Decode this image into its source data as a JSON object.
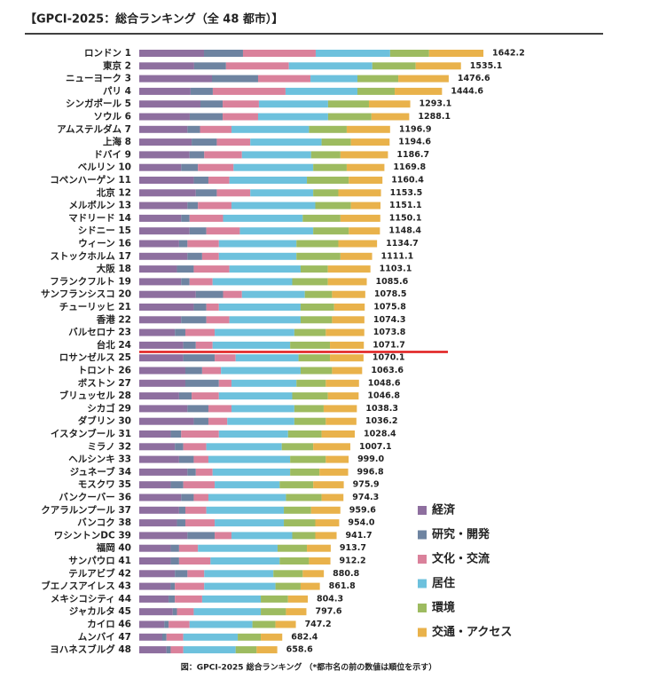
{
  "chart_data": {
    "type": "stacked-bar-horizontal",
    "title": "【GPCI-2025：総合ランキング（全 48 都市）】",
    "caption": "図：GPCI-2025 総合ランキング （*都市名の前の数値は順位を示す）",
    "categories": [
      "ロンドン 1",
      "東京 2",
      "ニューヨーク 3",
      "パリ 4",
      "シンガポール 5",
      "ソウル 6",
      "アムステルダム 7",
      "上海 8",
      "ドバイ 9",
      "ベルリン 10",
      "コペンハーゲン 11",
      "北京 12",
      "メルボルン 13",
      "マドリード 14",
      "シドニー 15",
      "ウィーン 16",
      "ストックホルム 17",
      "大阪 18",
      "フランクフルト 19",
      "サンフランシスコ 20",
      "チューリッヒ 21",
      "香港 22",
      "バルセロナ 23",
      "台北 24",
      "ロサンゼルス 25",
      "トロント 26",
      "ボストン 27",
      "ブリュッセル 28",
      "シカゴ 29",
      "ダブリン 30",
      "イスタンブール 31",
      "ミラノ 32",
      "ヘルシンキ 33",
      "ジュネーブ 34",
      "モスクワ 35",
      "バンクーバー 36",
      "クアラルンプール 37",
      "バンコク 38",
      "ワシントンDC 39",
      "福岡 40",
      "サンパウロ 41",
      "テルアビブ 42",
      "ブエノスアイレス 43",
      "メキシコシティ 44",
      "ジャカルタ 45",
      "カイロ 46",
      "ムンバイ 47",
      "ヨハネスブルグ 48"
    ],
    "series": [
      {
        "name": "経済",
        "color": "#8e6f9f",
        "values": [
          309,
          262,
          347,
          245,
          292,
          241,
          230,
          250,
          240,
          200,
          260,
          270,
          230,
          200,
          240,
          190,
          230,
          180,
          200,
          270,
          260,
          200,
          170,
          210,
          210,
          220,
          220,
          190,
          230,
          260,
          150,
          170,
          190,
          230,
          150,
          200,
          190,
          180,
          230,
          150,
          150,
          170,
          150,
          140,
          160,
          120,
          110,
          130
        ]
      },
      {
        "name": "研究・開発",
        "color": "#6e84a1",
        "values": [
          186,
          152,
          220,
          106,
          106,
          157,
          60,
          120,
          70,
          80,
          70,
          100,
          50,
          40,
          80,
          40,
          70,
          80,
          40,
          130,
          60,
          120,
          50,
          60,
          150,
          80,
          160,
          60,
          100,
          70,
          50,
          40,
          70,
          40,
          60,
          60,
          30,
          40,
          130,
          40,
          40,
          60,
          20,
          30,
          20,
          20,
          20,
          20
        ]
      },
      {
        "name": "文化・交流",
        "color": "#da819b",
        "values": [
          347,
          300,
          250,
          347,
          173,
          169,
          150,
          160,
          180,
          170,
          100,
          160,
          160,
          160,
          160,
          150,
          80,
          170,
          110,
          90,
          60,
          110,
          140,
          80,
          100,
          90,
          60,
          130,
          110,
          90,
          180,
          110,
          70,
          80,
          150,
          70,
          100,
          140,
          80,
          90,
          150,
          80,
          140,
          130,
          80,
          100,
          80,
          60
        ]
      },
      {
        "name": "居住",
        "color": "#6dc1dd",
        "values": [
          355,
          398,
          224,
          343,
          330,
          334,
          370,
          340,
          330,
          380,
          370,
          300,
          400,
          380,
          350,
          370,
          370,
          340,
          380,
          300,
          390,
          340,
          380,
          370,
          300,
          380,
          310,
          350,
          300,
          320,
          330,
          360,
          390,
          370,
          310,
          370,
          370,
          330,
          290,
          380,
          330,
          330,
          340,
          280,
          320,
          300,
          260,
          250
        ]
      },
      {
        "name": "環境",
        "color": "#9dbb60",
        "values": [
          186,
          207,
          195,
          178,
          195,
          207,
          180,
          140,
          140,
          160,
          200,
          120,
          170,
          180,
          170,
          200,
          210,
          130,
          170,
          130,
          160,
          150,
          150,
          190,
          150,
          150,
          140,
          170,
          140,
          150,
          160,
          150,
          170,
          140,
          160,
          170,
          130,
          150,
          110,
          140,
          140,
          140,
          120,
          130,
          120,
          110,
          110,
          100
        ]
      },
      {
        "name": "交通・アクセス",
        "color": "#e9b24b",
        "values": [
          259.2,
          216.1,
          240.6,
          225.6,
          197.1,
          180.1,
          206.9,
          184.6,
          226.7,
          179.8,
          160.4,
          203.5,
          141.1,
          190.1,
          148.4,
          184.7,
          151.1,
          203.1,
          185.6,
          158.5,
          145.8,
          154.3,
          183.8,
          161.7,
          160.1,
          143.6,
          158.6,
          146.8,
          158.3,
          146.2,
          158.4,
          177.1,
          109,
          136.8,
          145.9,
          104.3,
          139.6,
          114,
          101.7,
          113.7,
          102.2,
          100.8,
          91.8,
          94.3,
          97.6,
          97.2,
          102.4,
          98.6
        ]
      }
    ],
    "totals": [
      1642.2,
      1535.1,
      1476.6,
      1444.6,
      1293.1,
      1288.1,
      1196.9,
      1194.6,
      1186.7,
      1169.8,
      1160.4,
      1153.5,
      1151.1,
      1150.1,
      1148.4,
      1134.7,
      1111.1,
      1103.1,
      1085.6,
      1078.5,
      1075.8,
      1074.3,
      1073.8,
      1071.7,
      1070.1,
      1063.6,
      1048.6,
      1046.8,
      1038.3,
      1036.2,
      1028.4,
      1007.1,
      999,
      996.8,
      975.9,
      974.3,
      959.6,
      954,
      941.7,
      913.7,
      912.2,
      880.8,
      861.8,
      804.3,
      797.6,
      747.2,
      682.4,
      658.6
    ],
    "total_labels": [
      "1642.2",
      "1535.1",
      "1476.6",
      "1444.6",
      "1293.1",
      "1288.1",
      "1196.9",
      "1194.6",
      "1186.7",
      "1169.8",
      "1160.4",
      "1153.5",
      "1151.1",
      "1150.1",
      "1148.4",
      "1134.7",
      "1111.1",
      "1103.1",
      "1085.6",
      "1078.5",
      "1075.8",
      "1074.3",
      "1073.8",
      "1071.7",
      "1070.1",
      "1063.6",
      "1048.6",
      "1046.8",
      "1038.3",
      "1036.2",
      "1028.4",
      "1007.1",
      "999.0",
      "996.8",
      "975.9",
      "974.3",
      "959.6",
      "954.0",
      "941.7",
      "913.7",
      "912.2",
      "880.8",
      "861.8",
      "804.3",
      "797.6",
      "747.2",
      "682.4",
      "658.6"
    ],
    "xlim": [
      0,
      2000
    ]
  }
}
